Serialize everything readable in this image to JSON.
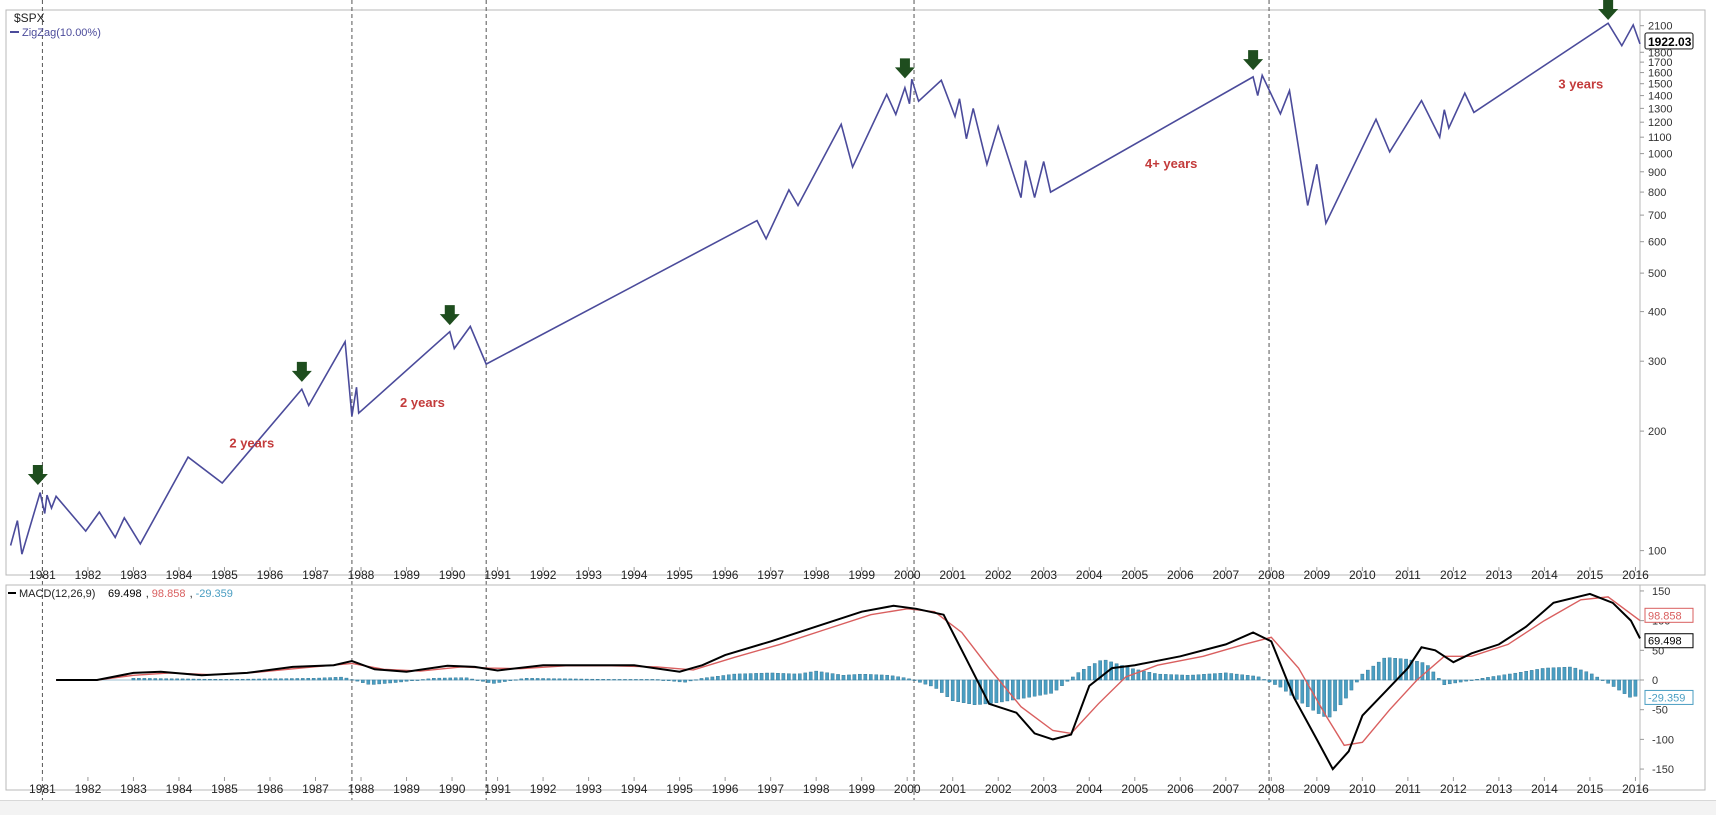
{
  "chart_data": [
    {
      "type": "line",
      "panel": "price",
      "title": "$SPX",
      "legend": [
        {
          "label": "ZigZag(10.00%)",
          "color": "#4b4b9b"
        }
      ],
      "y_scale": "log",
      "ylim": [
        92,
        2300
      ],
      "xlim": [
        1980.2,
        2016.1
      ],
      "y_ticks": [
        100,
        200,
        300,
        400,
        500,
        600,
        700,
        800,
        900,
        1000,
        1100,
        1200,
        1300,
        1400,
        1500,
        1600,
        1700,
        1800,
        2100
      ],
      "y_tick_labels": [
        "100",
        "200",
        "300",
        "400",
        "500",
        "600",
        "700",
        "800",
        "900",
        "1000",
        "1100",
        "1200",
        "1300",
        "1400",
        "1500",
        "1600",
        "1700",
        "1800",
        "2100"
      ],
      "last_value_label": "1922.03",
      "series": [
        {
          "name": "ZigZag(10.00%)",
          "color": "#4b4b9b",
          "points": [
            [
              1980.3,
              103
            ],
            [
              1980.45,
              119
            ],
            [
              1980.55,
              98
            ],
            [
              1980.95,
              140
            ],
            [
              1981.05,
              124
            ],
            [
              1981.1,
              138
            ],
            [
              1981.2,
              128
            ],
            [
              1981.3,
              137
            ],
            [
              1981.95,
              112
            ],
            [
              1982.25,
              125
            ],
            [
              1982.6,
              108
            ],
            [
              1982.8,
              121
            ],
            [
              1983.15,
              104
            ],
            [
              1984.2,
              172
            ],
            [
              1984.95,
              148
            ],
            [
              1986.7,
              255
            ],
            [
              1986.85,
              232
            ],
            [
              1987.65,
              336
            ],
            [
              1987.8,
              218
            ],
            [
              1987.9,
              258
            ],
            [
              1987.95,
              222
            ],
            [
              1989.95,
              356
            ],
            [
              1990.05,
              323
            ],
            [
              1990.4,
              367
            ],
            [
              1990.75,
              295
            ],
            [
              1996.7,
              678
            ],
            [
              1996.9,
              610
            ],
            [
              1997.4,
              810
            ],
            [
              1997.6,
              740
            ],
            [
              1998.55,
              1185
            ],
            [
              1998.8,
              925
            ],
            [
              1999.55,
              1410
            ],
            [
              1999.75,
              1255
            ],
            [
              1999.95,
              1465
            ],
            [
              2000.05,
              1335
            ],
            [
              2000.1,
              1540
            ],
            [
              2000.25,
              1355
            ],
            [
              2000.75,
              1530
            ],
            [
              2001.05,
              1240
            ],
            [
              2001.15,
              1375
            ],
            [
              2001.3,
              1090
            ],
            [
              2001.45,
              1300
            ],
            [
              2001.75,
              940
            ],
            [
              2002.0,
              1170
            ],
            [
              2002.5,
              775
            ],
            [
              2002.6,
              960
            ],
            [
              2002.8,
              775
            ],
            [
              2003.0,
              955
            ],
            [
              2003.15,
              800
            ],
            [
              2007.6,
              1560
            ],
            [
              2007.7,
              1400
            ],
            [
              2007.8,
              1575
            ],
            [
              2008.2,
              1260
            ],
            [
              2008.4,
              1440
            ],
            [
              2008.8,
              740
            ],
            [
              2009.0,
              940
            ],
            [
              2009.2,
              668
            ],
            [
              2010.3,
              1220
            ],
            [
              2010.6,
              1010
            ],
            [
              2011.3,
              1360
            ],
            [
              2011.7,
              1100
            ],
            [
              2011.8,
              1290
            ],
            [
              2011.9,
              1160
            ],
            [
              2012.25,
              1420
            ],
            [
              2012.45,
              1270
            ],
            [
              2015.4,
              2130
            ],
            [
              2015.7,
              1870
            ],
            [
              2015.95,
              2110
            ],
            [
              2016.1,
              1890
            ]
          ]
        }
      ],
      "x_tick_labels": [
        "1981",
        "1982",
        "1983",
        "1984",
        "1985",
        "1986",
        "1987",
        "1988",
        "1989",
        "1990",
        "1991",
        "1992",
        "1993",
        "1994",
        "1995",
        "1996",
        "1997",
        "1998",
        "1999",
        "2000",
        "2001",
        "2002",
        "2003",
        "2004",
        "2005",
        "2006",
        "2007",
        "2008",
        "2009",
        "2010",
        "2011",
        "2012",
        "2013",
        "2014",
        "2015",
        "2016"
      ],
      "vertical_markers": [
        1981.0,
        1987.8,
        1990.75,
        2000.15,
        2007.95
      ],
      "down_arrows": [
        {
          "x": 1980.9,
          "y": 155
        },
        {
          "x": 1986.7,
          "y": 282
        },
        {
          "x": 1989.95,
          "y": 392
        },
        {
          "x": 1999.95,
          "y": 1640
        },
        {
          "x": 2007.6,
          "y": 1720
        },
        {
          "x": 2015.4,
          "y": 2300
        }
      ],
      "annotations": [
        {
          "text": "2 years",
          "x": 1985.6,
          "y": 182
        },
        {
          "text": "2 years",
          "x": 1989.35,
          "y": 230
        },
        {
          "text": "4+ years",
          "x": 2005.8,
          "y": 920
        },
        {
          "text": "3 years",
          "x": 2014.8,
          "y": 1460
        }
      ]
    },
    {
      "type": "line",
      "panel": "indicator",
      "title": "MACD(12,26,9)",
      "legend": [
        {
          "label": "69.498",
          "color": "#000000"
        },
        {
          "label": "98.858",
          "color": "#d95f5f"
        },
        {
          "label": "-29.359",
          "color": "#4a9ec2"
        }
      ],
      "ylim": [
        -160,
        160
      ],
      "xlim": [
        1980.2,
        2016.1
      ],
      "y_ticks": [
        150,
        100,
        50,
        0,
        -50,
        -100,
        -150
      ],
      "y_tick_labels": [
        "150",
        "100",
        "50",
        "0",
        "-50",
        "-100",
        "-150"
      ],
      "value_tags": [
        {
          "value": 98.858,
          "label": "98.858",
          "color": "#d95f5f"
        },
        {
          "value": 69.498,
          "label": "69.498",
          "color": "#000000"
        },
        {
          "value": -29.359,
          "label": "-29.359",
          "color": "#4a9ec2"
        }
      ],
      "series": [
        {
          "name": "MACD",
          "color": "#000000",
          "points": [
            [
              1981.3,
              0
            ],
            [
              1982.2,
              0
            ],
            [
              1983.0,
              12
            ],
            [
              1983.6,
              14
            ],
            [
              1984.5,
              8
            ],
            [
              1985.5,
              12
            ],
            [
              1986.5,
              22
            ],
            [
              1987.4,
              25
            ],
            [
              1987.8,
              32
            ],
            [
              1988.3,
              18
            ],
            [
              1989.0,
              14
            ],
            [
              1989.9,
              24
            ],
            [
              1990.5,
              22
            ],
            [
              1991.0,
              16
            ],
            [
              1992.0,
              25
            ],
            [
              1993.0,
              25
            ],
            [
              1994.0,
              25
            ],
            [
              1995.0,
              14
            ],
            [
              1995.5,
              25
            ],
            [
              1996.0,
              42
            ],
            [
              1997.0,
              65
            ],
            [
              1998.0,
              90
            ],
            [
              1999.0,
              115
            ],
            [
              1999.7,
              125
            ],
            [
              2000.2,
              120
            ],
            [
              2000.8,
              110
            ],
            [
              2001.3,
              35
            ],
            [
              2001.8,
              -40
            ],
            [
              2002.4,
              -55
            ],
            [
              2002.8,
              -90
            ],
            [
              2003.2,
              -100
            ],
            [
              2003.6,
              -92
            ],
            [
              2004.0,
              -10
            ],
            [
              2004.5,
              20
            ],
            [
              2005.0,
              25
            ],
            [
              2006.0,
              40
            ],
            [
              2007.0,
              60
            ],
            [
              2007.6,
              80
            ],
            [
              2008.0,
              65
            ],
            [
              2008.5,
              -30
            ],
            [
              2009.0,
              -100
            ],
            [
              2009.35,
              -150
            ],
            [
              2009.7,
              -120
            ],
            [
              2010.0,
              -60
            ],
            [
              2010.5,
              -20
            ],
            [
              2011.0,
              20
            ],
            [
              2011.3,
              55
            ],
            [
              2011.6,
              50
            ],
            [
              2012.0,
              30
            ],
            [
              2012.4,
              45
            ],
            [
              2013.0,
              60
            ],
            [
              2013.6,
              90
            ],
            [
              2014.2,
              130
            ],
            [
              2015.0,
              145
            ],
            [
              2015.5,
              130
            ],
            [
              2015.9,
              100
            ],
            [
              2016.1,
              70
            ]
          ]
        },
        {
          "name": "Signal",
          "color": "#d95f5f",
          "points": [
            [
              1981.3,
              0
            ],
            [
              1982.2,
              0
            ],
            [
              1983.0,
              8
            ],
            [
              1983.8,
              12
            ],
            [
              1984.7,
              9
            ],
            [
              1985.7,
              13
            ],
            [
              1986.8,
              21
            ],
            [
              1987.8,
              28
            ],
            [
              1988.5,
              18
            ],
            [
              1989.3,
              15
            ],
            [
              1990.2,
              22
            ],
            [
              1990.8,
              20
            ],
            [
              1991.5,
              19
            ],
            [
              1992.5,
              24
            ],
            [
              1993.5,
              24
            ],
            [
              1994.5,
              22
            ],
            [
              1995.3,
              17
            ],
            [
              1996.2,
              38
            ],
            [
              1997.2,
              60
            ],
            [
              1998.2,
              85
            ],
            [
              1999.2,
              110
            ],
            [
              2000.0,
              120
            ],
            [
              2000.6,
              115
            ],
            [
              2001.2,
              80
            ],
            [
              2001.8,
              20
            ],
            [
              2002.5,
              -45
            ],
            [
              2003.2,
              -85
            ],
            [
              2003.6,
              -90
            ],
            [
              2004.2,
              -40
            ],
            [
              2004.8,
              5
            ],
            [
              2005.5,
              25
            ],
            [
              2006.5,
              40
            ],
            [
              2007.4,
              60
            ],
            [
              2008.0,
              72
            ],
            [
              2008.6,
              20
            ],
            [
              2009.2,
              -60
            ],
            [
              2009.6,
              -110
            ],
            [
              2010.0,
              -105
            ],
            [
              2010.6,
              -50
            ],
            [
              2011.2,
              0
            ],
            [
              2011.8,
              40
            ],
            [
              2012.4,
              40
            ],
            [
              2013.2,
              60
            ],
            [
              2014.0,
              100
            ],
            [
              2014.8,
              135
            ],
            [
              2015.4,
              140
            ],
            [
              2016.1,
              100
            ]
          ]
        }
      ],
      "histogram": [
        [
          1983.0,
          3
        ],
        [
          1984.0,
          2
        ],
        [
          1985.0,
          1
        ],
        [
          1986.0,
          2
        ],
        [
          1987.0,
          3
        ],
        [
          1987.6,
          5
        ],
        [
          1988.2,
          -8
        ],
        [
          1988.8,
          -4
        ],
        [
          1989.6,
          3
        ],
        [
          1990.3,
          4
        ],
        [
          1990.9,
          -6
        ],
        [
          1991.6,
          3
        ],
        [
          1992.5,
          2
        ],
        [
          1993.5,
          1
        ],
        [
          1994.5,
          1
        ],
        [
          1995.1,
          -4
        ],
        [
          1995.5,
          3
        ],
        [
          1996.2,
          10
        ],
        [
          1997.0,
          12
        ],
        [
          1997.6,
          10
        ],
        [
          1998.0,
          15
        ],
        [
          1998.6,
          8
        ],
        [
          1999.0,
          10
        ],
        [
          1999.6,
          8
        ],
        [
          2000.0,
          3
        ],
        [
          2000.6,
          -12
        ],
        [
          2001.0,
          -35
        ],
        [
          2001.5,
          -42
        ],
        [
          2002.0,
          -38
        ],
        [
          2002.6,
          -30
        ],
        [
          2003.2,
          -22
        ],
        [
          2003.8,
          15
        ],
        [
          2004.3,
          35
        ],
        [
          2004.9,
          20
        ],
        [
          2005.5,
          10
        ],
        [
          2006.2,
          8
        ],
        [
          2007.0,
          12
        ],
        [
          2007.7,
          6
        ],
        [
          2008.2,
          -12
        ],
        [
          2008.6,
          -35
        ],
        [
          2009.0,
          -55
        ],
        [
          2009.25,
          -65
        ],
        [
          2009.6,
          -35
        ],
        [
          2010.0,
          10
        ],
        [
          2010.5,
          38
        ],
        [
          2011.0,
          35
        ],
        [
          2011.4,
          28
        ],
        [
          2011.8,
          -8
        ],
        [
          2012.2,
          -3
        ],
        [
          2012.8,
          5
        ],
        [
          2013.4,
          12
        ],
        [
          2014.0,
          20
        ],
        [
          2014.6,
          22
        ],
        [
          2015.0,
          12
        ],
        [
          2015.5,
          -10
        ],
        [
          2015.9,
          -30
        ],
        [
          2016.1,
          -25
        ]
      ]
    }
  ]
}
